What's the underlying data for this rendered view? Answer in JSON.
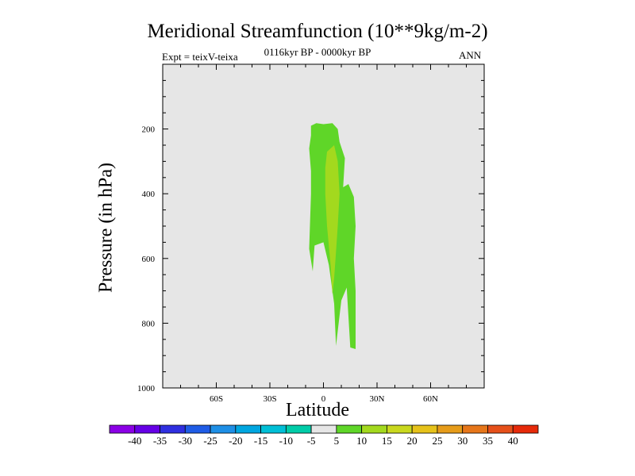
{
  "chart_data": {
    "type": "contour",
    "title": "Meridional Streamfunction (10**9kg/m-2)",
    "subtitle": "0116kyr BP - 0000kyr BP",
    "left_label": "Expt = teixV-teixa",
    "right_label": "ANN",
    "xlabel": "Latitude",
    "ylabel": "Pressure (in hPa)",
    "xlim": [
      -90,
      90
    ],
    "ylim": [
      1000,
      0
    ],
    "x_ticks": [
      {
        "value": -60,
        "label": "60S"
      },
      {
        "value": -30,
        "label": "30S"
      },
      {
        "value": 0,
        "label": "0"
      },
      {
        "value": 30,
        "label": "30N"
      },
      {
        "value": 60,
        "label": "60N"
      }
    ],
    "y_ticks": [
      {
        "value": 200,
        "label": "200"
      },
      {
        "value": 400,
        "label": "400"
      },
      {
        "value": 600,
        "label": "600"
      },
      {
        "value": 800,
        "label": "800"
      },
      {
        "value": 1000,
        "label": "1000"
      }
    ],
    "background_color": "#e6e6e6",
    "filled_regions": [
      {
        "name": "5-10",
        "color": "#5fd628",
        "points": [
          [
            -7,
            190
          ],
          [
            -4,
            182
          ],
          [
            0,
            185
          ],
          [
            5,
            182
          ],
          [
            8,
            200
          ],
          [
            9,
            240
          ],
          [
            12,
            290
          ],
          [
            11,
            380
          ],
          [
            14,
            370
          ],
          [
            17,
            410
          ],
          [
            18,
            500
          ],
          [
            17,
            600
          ],
          [
            18,
            700
          ],
          [
            18,
            880
          ],
          [
            15,
            875
          ],
          [
            13,
            690
          ],
          [
            10,
            730
          ],
          [
            7,
            870
          ],
          [
            6,
            740
          ],
          [
            3,
            620
          ],
          [
            0,
            550
          ],
          [
            -5,
            560
          ],
          [
            -6,
            640
          ],
          [
            -8,
            570
          ],
          [
            -7,
            400
          ],
          [
            -7,
            330
          ],
          [
            -8,
            260
          ],
          [
            -7,
            220
          ]
        ]
      },
      {
        "name": "10-15",
        "color": "#a3d91e",
        "points": [
          [
            2,
            270
          ],
          [
            6,
            250
          ],
          [
            8,
            300
          ],
          [
            9,
            400
          ],
          [
            8,
            500
          ],
          [
            7,
            580
          ],
          [
            6,
            660
          ],
          [
            5,
            710
          ],
          [
            4,
            620
          ],
          [
            2,
            500
          ],
          [
            1,
            400
          ],
          [
            1,
            320
          ]
        ]
      }
    ],
    "colorbar": {
      "levels": [
        -40,
        -35,
        -30,
        -25,
        -20,
        -15,
        -10,
        -5,
        5,
        10,
        15,
        20,
        25,
        30,
        35,
        40
      ],
      "colors": [
        "#8b00e6",
        "#6600e6",
        "#2f2fe0",
        "#1f5ce6",
        "#1e8fe6",
        "#00a6e0",
        "#00bfd6",
        "#00cca8",
        "#e6e6e6",
        "#5fd628",
        "#a3d91e",
        "#c9d81e",
        "#e6c21a",
        "#e69c1a",
        "#e6761a",
        "#e6501a",
        "#e62a0a"
      ]
    }
  }
}
